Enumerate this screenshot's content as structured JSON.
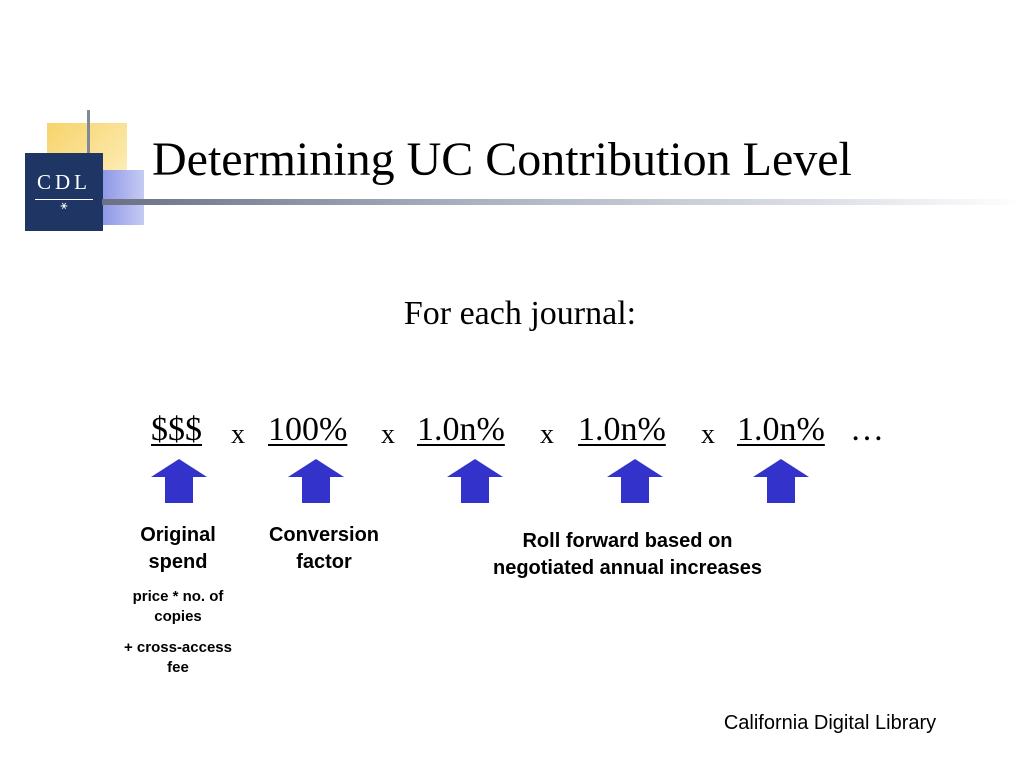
{
  "logo": {
    "text": "CDL",
    "mark": "⚹"
  },
  "title": "Determining UC Contribution Level",
  "subtitle": "For each journal:",
  "formula": {
    "terms": [
      "$$$",
      "100%",
      "1.0n%",
      "1.0n%",
      "1.0n%"
    ],
    "operator": "x",
    "ellipsis": "…"
  },
  "labels": {
    "original_spend": "Original spend",
    "original_spend_detail_1": "price * no. of copies",
    "original_spend_detail_2": "+ cross-access fee",
    "conversion_factor": "Conversion factor",
    "roll_forward": "Roll forward based on negotiated annual increases"
  },
  "footer": "California Digital Library",
  "colors": {
    "arrow": "#3333cc",
    "logo_bg": "#1f3563",
    "accent_yellow": "#f7d36a",
    "accent_lilac": "#8a94e6"
  }
}
